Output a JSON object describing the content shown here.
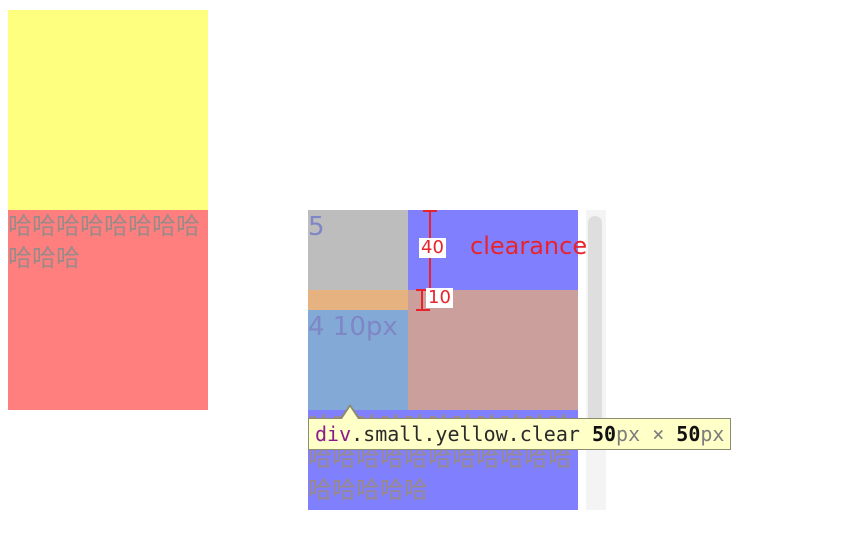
{
  "left_demo": {
    "text": "哈哈哈哈哈哈哈哈哈哈哈",
    "colors": {
      "yellow": "#ffff7f",
      "red": "#ff7f7f"
    }
  },
  "right_demo": {
    "label_5": "5",
    "label_4_10px": "4 10px",
    "bottom_text": "哈哈哈哈哈哈哈哈哈哈哈哈哈哈哈哈哈哈哈哈哈哈哈哈哈哈哈",
    "colors": {
      "blue": "#8080ff",
      "gray": "#bdbdbd",
      "orange": "#e6b380",
      "light_blue": "#83aad6",
      "pink": "#cba09c"
    }
  },
  "overlay": {
    "measure_top": "40",
    "measure_bottom": "10",
    "clearance_label": "clearance",
    "color": "#e8232b"
  },
  "tooltip": {
    "tag": "div",
    "classes": ".small.yellow.clear",
    "width_value": "50",
    "width_unit": "px",
    "times": "×",
    "height_value": "50",
    "height_unit": "px"
  }
}
